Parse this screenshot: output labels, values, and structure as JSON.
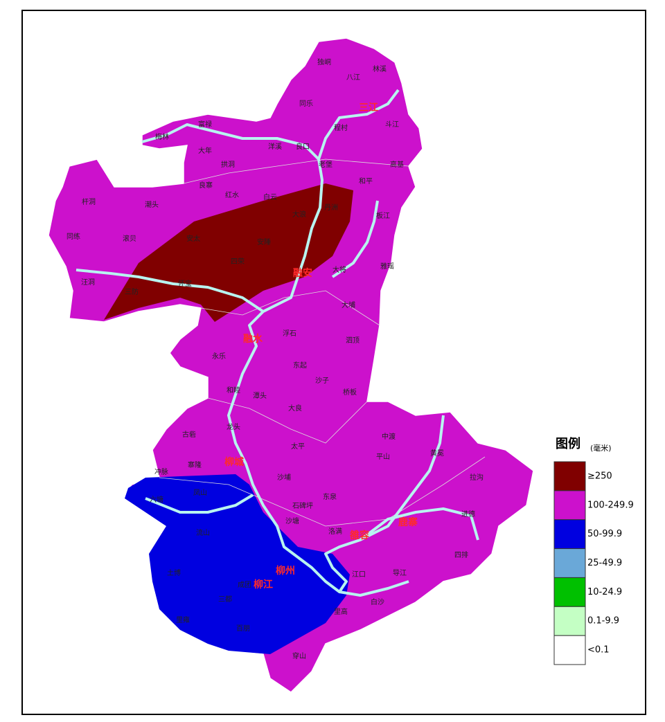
{
  "legend": {
    "title": "图例",
    "unit": "(毫米)",
    "items": [
      {
        "label": "≥250",
        "color": "#800000"
      },
      {
        "label": "100-249.9",
        "color": "#cc11cc"
      },
      {
        "label": "50-99.9",
        "color": "#0000e0"
      },
      {
        "label": "25-49.9",
        "color": "#6aa8d8"
      },
      {
        "label": "10-24.9",
        "color": "#00c000"
      },
      {
        "label": "0.1-9.9",
        "color": "#c4ffc4"
      },
      {
        "label": "<0.1",
        "color": "#ffffff"
      }
    ]
  },
  "places": [
    {
      "name": "独峒",
      "highlight": false
    },
    {
      "name": "八江",
      "highlight": false
    },
    {
      "name": "林溪",
      "highlight": false
    },
    {
      "name": "同乐",
      "highlight": false
    },
    {
      "name": "三江",
      "highlight": true
    },
    {
      "name": "斗江",
      "highlight": false
    },
    {
      "name": "程村",
      "highlight": false
    },
    {
      "name": "富禄",
      "highlight": false
    },
    {
      "name": "梅林",
      "highlight": false
    },
    {
      "name": "洋溪",
      "highlight": false
    },
    {
      "name": "良口",
      "highlight": false
    },
    {
      "name": "大年",
      "highlight": false
    },
    {
      "name": "老堡",
      "highlight": false
    },
    {
      "name": "高基",
      "highlight": false
    },
    {
      "name": "拱洞",
      "highlight": false
    },
    {
      "name": "和平",
      "highlight": false
    },
    {
      "name": "杆洞",
      "highlight": false
    },
    {
      "name": "潮头",
      "highlight": false
    },
    {
      "name": "红水",
      "highlight": false
    },
    {
      "name": "白云",
      "highlight": false
    },
    {
      "name": "良寨",
      "highlight": false
    },
    {
      "name": "丹洲",
      "highlight": false
    },
    {
      "name": "大浪",
      "highlight": false
    },
    {
      "name": "板江",
      "highlight": false
    },
    {
      "name": "同练",
      "highlight": false
    },
    {
      "name": "滚贝",
      "highlight": false
    },
    {
      "name": "安太",
      "highlight": false
    },
    {
      "name": "安陲",
      "highlight": false
    },
    {
      "name": "四荣",
      "highlight": false
    },
    {
      "name": "融安",
      "highlight": true
    },
    {
      "name": "大将",
      "highlight": false
    },
    {
      "name": "雅瑶",
      "highlight": false
    },
    {
      "name": "汪洞",
      "highlight": false
    },
    {
      "name": "三防",
      "highlight": false
    },
    {
      "name": "怀宝",
      "highlight": false
    },
    {
      "name": "大埔",
      "highlight": false
    },
    {
      "name": "融水",
      "highlight": true
    },
    {
      "name": "浮石",
      "highlight": false
    },
    {
      "name": "泗顶",
      "highlight": false
    },
    {
      "name": "永乐",
      "highlight": false
    },
    {
      "name": "东起",
      "highlight": false
    },
    {
      "name": "沙子",
      "highlight": false
    },
    {
      "name": "和睦",
      "highlight": false
    },
    {
      "name": "潭头",
      "highlight": false
    },
    {
      "name": "桥板",
      "highlight": false
    },
    {
      "name": "龙头",
      "highlight": false
    },
    {
      "name": "大良",
      "highlight": false
    },
    {
      "name": "古砦",
      "highlight": false
    },
    {
      "name": "中渡",
      "highlight": false
    },
    {
      "name": "黄冕",
      "highlight": false
    },
    {
      "name": "太平",
      "highlight": false
    },
    {
      "name": "平山",
      "highlight": false
    },
    {
      "name": "寨隆",
      "highlight": false
    },
    {
      "name": "柳城",
      "highlight": true
    },
    {
      "name": "拉沟",
      "highlight": false
    },
    {
      "name": "冲脉",
      "highlight": false
    },
    {
      "name": "沙埔",
      "highlight": false
    },
    {
      "name": "六塘",
      "highlight": false
    },
    {
      "name": "凤山",
      "highlight": false
    },
    {
      "name": "石碑坪",
      "highlight": false
    },
    {
      "name": "东泉",
      "highlight": false
    },
    {
      "name": "进德",
      "highlight": false
    },
    {
      "name": "鹿寨",
      "highlight": true
    },
    {
      "name": "雒容",
      "highlight": true
    },
    {
      "name": "沙塘",
      "highlight": false
    },
    {
      "name": "洛满",
      "highlight": false
    },
    {
      "name": "流山",
      "highlight": false
    },
    {
      "name": "四排",
      "highlight": false
    },
    {
      "name": "柳江",
      "highlight": true
    },
    {
      "name": "柳州",
      "highlight": true
    },
    {
      "name": "导江",
      "highlight": false
    },
    {
      "name": "江口",
      "highlight": false
    },
    {
      "name": "土博",
      "highlight": false
    },
    {
      "name": "三都",
      "highlight": false
    },
    {
      "name": "成团",
      "highlight": false
    },
    {
      "name": "里雍",
      "highlight": false
    },
    {
      "name": "百朋",
      "highlight": false
    },
    {
      "name": "穿山",
      "highlight": false
    },
    {
      "name": "白沙",
      "highlight": false
    },
    {
      "name": "里高",
      "highlight": false
    }
  ]
}
